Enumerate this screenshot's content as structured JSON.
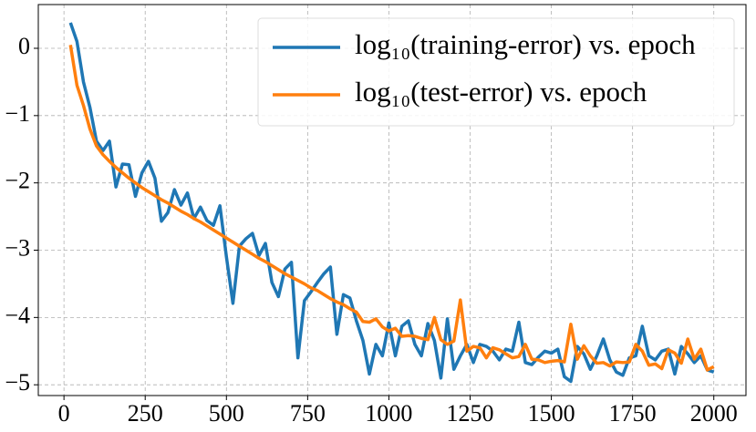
{
  "chart_data": {
    "type": "line",
    "x": [
      20,
      40,
      60,
      80,
      100,
      120,
      140,
      160,
      180,
      200,
      220,
      240,
      260,
      280,
      300,
      320,
      340,
      360,
      380,
      400,
      420,
      440,
      460,
      480,
      500,
      520,
      540,
      560,
      580,
      600,
      620,
      640,
      660,
      680,
      700,
      720,
      740,
      760,
      780,
      800,
      820,
      840,
      860,
      880,
      900,
      920,
      940,
      960,
      980,
      1000,
      1020,
      1040,
      1060,
      1080,
      1100,
      1120,
      1140,
      1160,
      1180,
      1200,
      1220,
      1240,
      1260,
      1280,
      1300,
      1320,
      1340,
      1360,
      1380,
      1400,
      1420,
      1440,
      1460,
      1480,
      1500,
      1520,
      1540,
      1560,
      1580,
      1600,
      1620,
      1640,
      1660,
      1680,
      1700,
      1720,
      1740,
      1760,
      1780,
      1800,
      1820,
      1840,
      1860,
      1880,
      1900,
      1920,
      1940,
      1960,
      1980,
      2000
    ],
    "series": [
      {
        "name": "log₁₀(training-error) vs. epoch",
        "color": "#1f77b4",
        "values": [
          0.38,
          0.1,
          -0.5,
          -0.88,
          -1.38,
          -1.52,
          -1.38,
          -2.06,
          -1.72,
          -1.73,
          -2.2,
          -1.85,
          -1.68,
          -1.93,
          -2.57,
          -2.44,
          -2.1,
          -2.33,
          -2.15,
          -2.53,
          -2.36,
          -2.56,
          -2.63,
          -2.34,
          -3.1,
          -3.79,
          -2.94,
          -2.83,
          -2.75,
          -3.08,
          -2.9,
          -3.48,
          -3.69,
          -3.28,
          -3.18,
          -4.6,
          -3.75,
          -3.62,
          -3.48,
          -3.35,
          -3.25,
          -4.25,
          -3.66,
          -3.71,
          -4.05,
          -4.34,
          -4.84,
          -4.4,
          -4.57,
          -4.08,
          -4.57,
          -4.13,
          -4.05,
          -4.4,
          -4.57,
          -4.09,
          -4.34,
          -4.9,
          -4.02,
          -4.77,
          -4.57,
          -4.4,
          -4.67,
          -4.4,
          -4.43,
          -4.5,
          -4.63,
          -4.47,
          -4.5,
          -4.07,
          -4.67,
          -4.7,
          -4.59,
          -4.5,
          -4.53,
          -4.47,
          -4.88,
          -4.95,
          -4.43,
          -4.54,
          -4.77,
          -4.57,
          -4.32,
          -4.63,
          -4.81,
          -4.86,
          -4.6,
          -4.57,
          -4.13,
          -4.57,
          -4.63,
          -4.5,
          -4.47,
          -4.84,
          -4.43,
          -4.54,
          -4.67,
          -4.57,
          -4.78,
          -4.81
        ]
      },
      {
        "name": "log₁₀(test-error) vs. epoch",
        "color": "#ff7f0e",
        "values": [
          0.05,
          -0.55,
          -0.85,
          -1.2,
          -1.45,
          -1.58,
          -1.68,
          -1.77,
          -1.85,
          -1.93,
          -2.0,
          -2.07,
          -2.13,
          -2.19,
          -2.25,
          -2.3,
          -2.36,
          -2.42,
          -2.47,
          -2.53,
          -2.58,
          -2.64,
          -2.7,
          -2.76,
          -2.82,
          -2.88,
          -2.94,
          -3.0,
          -3.06,
          -3.12,
          -3.17,
          -3.23,
          -3.29,
          -3.35,
          -3.4,
          -3.45,
          -3.5,
          -3.56,
          -3.6,
          -3.66,
          -3.72,
          -3.77,
          -3.81,
          -3.87,
          -3.92,
          -4.06,
          -4.07,
          -4.02,
          -4.14,
          -4.2,
          -4.16,
          -4.28,
          -4.27,
          -4.28,
          -4.31,
          -4.33,
          -4.0,
          -4.33,
          -4.4,
          -4.35,
          -3.74,
          -4.5,
          -4.43,
          -4.45,
          -4.6,
          -4.45,
          -4.48,
          -4.54,
          -4.6,
          -4.58,
          -4.4,
          -4.62,
          -4.63,
          -4.67,
          -4.65,
          -4.64,
          -4.66,
          -4.1,
          -4.62,
          -4.42,
          -4.57,
          -4.68,
          -4.67,
          -4.72,
          -4.66,
          -4.67,
          -4.66,
          -4.4,
          -4.5,
          -4.71,
          -4.69,
          -4.76,
          -4.48,
          -4.53,
          -4.68,
          -4.32,
          -4.62,
          -4.47,
          -4.78,
          -4.73
        ]
      }
    ],
    "xlim": [
      -79,
      2099
    ],
    "ylim": [
      -5.16,
      0.65
    ],
    "xticks": [
      0,
      250,
      500,
      750,
      1000,
      1250,
      1500,
      1750,
      2000
    ],
    "yticks": [
      {
        "value": -5,
        "label": "−5"
      },
      {
        "value": -4,
        "label": "−4"
      },
      {
        "value": -3,
        "label": "−3"
      },
      {
        "value": -2,
        "label": "−2"
      },
      {
        "value": -1,
        "label": "−1"
      },
      0
    ],
    "grid": true,
    "legend": "upper right"
  }
}
